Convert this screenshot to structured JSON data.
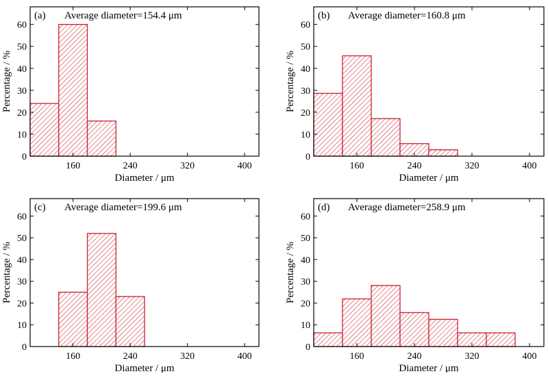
{
  "chart_data": [
    {
      "type": "bar",
      "panel_label": "(a)",
      "annotation": "Average diameter=154.4 μm",
      "xlabel": "Diameter / μm",
      "ylabel": "Percentage / %",
      "xlim": [
        100,
        420
      ],
      "ylim": [
        0,
        68
      ],
      "x_ticks": [
        160,
        240,
        320,
        400
      ],
      "x_tick_labels": [
        "160",
        "240",
        "320",
        "400"
      ],
      "y_ticks": [
        0,
        10,
        20,
        30,
        40,
        50,
        60
      ],
      "y_tick_labels": [
        "0",
        "10",
        "20",
        "30",
        "40",
        "50",
        "60"
      ],
      "bin_width": 40,
      "bins": [
        {
          "start": 100,
          "end": 140,
          "value": 24
        },
        {
          "start": 140,
          "end": 180,
          "value": 60
        },
        {
          "start": 180,
          "end": 220,
          "value": 16
        }
      ],
      "bar_color": "#cc1f2f"
    },
    {
      "type": "bar",
      "panel_label": "(b)",
      "annotation": "Average diameter=160.8 μm",
      "xlabel": "Diameter / μm",
      "ylabel": "Percentage / %",
      "xlim": [
        100,
        420
      ],
      "ylim": [
        0,
        68
      ],
      "x_ticks": [
        160,
        240,
        320,
        400
      ],
      "x_tick_labels": [
        "160",
        "240",
        "320",
        "400"
      ],
      "y_ticks": [
        0,
        10,
        20,
        30,
        40,
        50,
        60
      ],
      "y_tick_labels": [
        "0",
        "10",
        "20",
        "30",
        "40",
        "50",
        "60"
      ],
      "bin_width": 40,
      "bins": [
        {
          "start": 100,
          "end": 140,
          "value": 28.6
        },
        {
          "start": 140,
          "end": 180,
          "value": 45.7
        },
        {
          "start": 180,
          "end": 220,
          "value": 17.1
        },
        {
          "start": 220,
          "end": 260,
          "value": 5.7
        },
        {
          "start": 260,
          "end": 300,
          "value": 2.9
        }
      ],
      "bar_color": "#cc1f2f"
    },
    {
      "type": "bar",
      "panel_label": "(c)",
      "annotation": "Average diameter=199.6 μm",
      "xlabel": "Diameter / μm",
      "ylabel": "Percentage / %",
      "xlim": [
        100,
        420
      ],
      "ylim": [
        0,
        68
      ],
      "x_ticks": [
        160,
        240,
        320,
        400
      ],
      "x_tick_labels": [
        "160",
        "240",
        "320",
        "400"
      ],
      "y_ticks": [
        0,
        10,
        20,
        30,
        40,
        50,
        60
      ],
      "y_tick_labels": [
        "0",
        "10",
        "20",
        "30",
        "40",
        "50",
        "60"
      ],
      "bin_width": 40,
      "bins": [
        {
          "start": 140,
          "end": 180,
          "value": 25
        },
        {
          "start": 180,
          "end": 220,
          "value": 52
        },
        {
          "start": 220,
          "end": 260,
          "value": 23
        }
      ],
      "bar_color": "#cc1f2f"
    },
    {
      "type": "bar",
      "panel_label": "(d)",
      "annotation": "Average diameter=258.9 μm",
      "xlabel": "Diameter / μm",
      "ylabel": "Percentage / %",
      "xlim": [
        100,
        420
      ],
      "ylim": [
        0,
        68
      ],
      "x_ticks": [
        160,
        240,
        320,
        400
      ],
      "x_tick_labels": [
        "160",
        "240",
        "320",
        "400"
      ],
      "y_ticks": [
        0,
        10,
        20,
        30,
        40,
        50,
        60
      ],
      "y_tick_labels": [
        "0",
        "10",
        "20",
        "30",
        "40",
        "50",
        "60"
      ],
      "bin_width": 40,
      "bins": [
        {
          "start": 100,
          "end": 140,
          "value": 6.3
        },
        {
          "start": 140,
          "end": 180,
          "value": 21.9
        },
        {
          "start": 180,
          "end": 220,
          "value": 28.1
        },
        {
          "start": 220,
          "end": 260,
          "value": 15.6
        },
        {
          "start": 260,
          "end": 300,
          "value": 12.5
        },
        {
          "start": 300,
          "end": 340,
          "value": 6.3
        },
        {
          "start": 340,
          "end": 380,
          "value": 6.3
        }
      ],
      "bar_color": "#cc1f2f"
    }
  ]
}
